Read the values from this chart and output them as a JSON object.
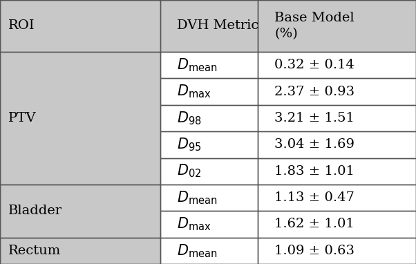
{
  "col_headers": [
    "ROI",
    "DVH Metric",
    "Base Model\n(%)"
  ],
  "rows": [
    {
      "roi": "PTV",
      "sub": "mean",
      "value": "0.32 ± 0.14"
    },
    {
      "roi": "",
      "sub": "max",
      "value": "2.37 ± 0.93"
    },
    {
      "roi": "",
      "sub": "98",
      "value": "3.21 ± 1.51"
    },
    {
      "roi": "",
      "sub": "95",
      "value": "3.04 ± 1.69"
    },
    {
      "roi": "",
      "sub": "02",
      "value": "1.83 ± 1.01"
    },
    {
      "roi": "Bladder",
      "sub": "mean",
      "value": "1.13 ± 0.47"
    },
    {
      "roi": "",
      "sub": "max",
      "value": "1.62 ± 1.01"
    },
    {
      "roi": "Rectum",
      "sub": "mean",
      "value": "1.09 ± 0.63"
    }
  ],
  "bg_color": "#c8c8c8",
  "cell_bg_white": "#ffffff",
  "border_color": "#555555",
  "text_color": "#000000",
  "group_starts": [
    0,
    5,
    7
  ],
  "fig_width": 6.02,
  "fig_height": 3.82,
  "font_size": 14,
  "header_font_size": 14
}
